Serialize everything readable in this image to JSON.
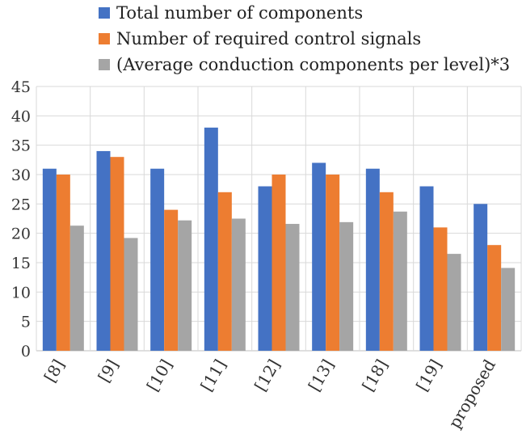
{
  "chart_data": {
    "type": "bar",
    "categories": [
      "[8]",
      "[9]",
      "[10]",
      "[11]",
      "[12]",
      "[13]",
      "[18]",
      "[19]",
      "proposed"
    ],
    "series": [
      {
        "name": "Total number of components",
        "color": "#4472C4",
        "values": [
          31,
          34,
          31,
          38,
          28,
          32,
          31,
          28,
          25
        ]
      },
      {
        "name": "Number of required control signals",
        "color": "#ED7D31",
        "values": [
          30,
          33,
          24,
          27,
          30,
          30,
          27,
          21,
          18
        ]
      },
      {
        "name": "(Average conduction components per level)*3",
        "color": "#A5A5A5",
        "values": [
          21.3,
          19.2,
          22.2,
          22.5,
          21.6,
          21.9,
          23.7,
          16.5,
          14.1
        ]
      }
    ],
    "yticks": [
      "0",
      "5",
      "10",
      "15",
      "20",
      "25",
      "30",
      "35",
      "40",
      "45"
    ],
    "ylim": [
      0,
      45
    ],
    "title": "",
    "xlabel": "",
    "ylabel": "",
    "legend_position": "top",
    "grid": true
  }
}
